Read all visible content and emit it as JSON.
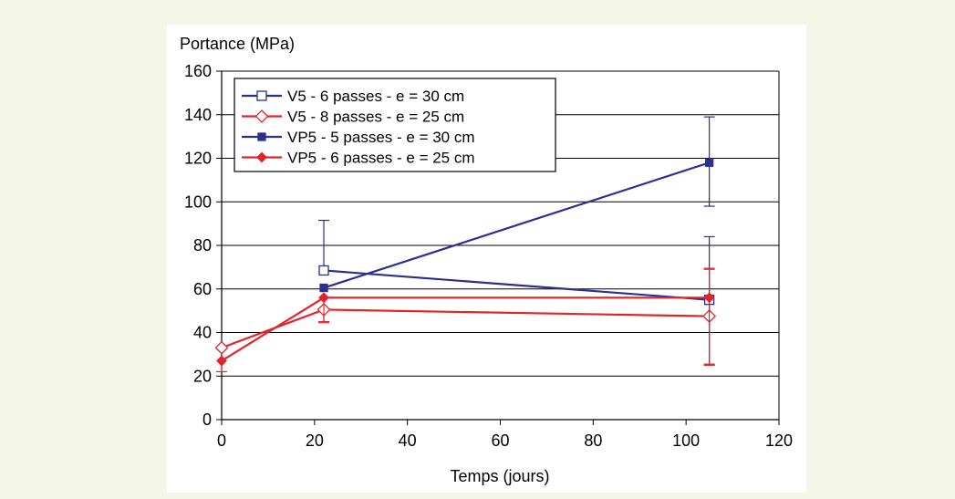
{
  "chart_data": {
    "type": "line",
    "title": "",
    "ylabel": "Portance (MPa)",
    "xlabel": "Temps (jours)",
    "xlim": [
      0,
      120
    ],
    "ylim": [
      0,
      160
    ],
    "x_ticks": [
      0,
      20,
      40,
      60,
      80,
      100,
      120
    ],
    "y_ticks": [
      0,
      20,
      40,
      60,
      80,
      100,
      120,
      140,
      160
    ],
    "grid": "horizontal",
    "legend_position": "top-left",
    "series": [
      {
        "name": "V5 - 6 passes - e = 30 cm",
        "color": "#2b2f8f",
        "marker": "square-open",
        "points": [
          {
            "x": 22,
            "y": 68.5,
            "err_low": 0,
            "err_high": 23
          },
          {
            "x": 105,
            "y": 55,
            "err_low": 30,
            "err_high": 29
          }
        ]
      },
      {
        "name": "V5 - 8 passes - e = 25 cm",
        "color": "#e3242b",
        "marker": "diamond-open",
        "points": [
          {
            "x": 0,
            "y": 33,
            "err_low": 0,
            "err_high": 0
          },
          {
            "x": 22,
            "y": 50.5,
            "err_low": 6,
            "err_high": 0
          },
          {
            "x": 105,
            "y": 47.5,
            "err_low": 22,
            "err_high": 22
          }
        ]
      },
      {
        "name": "VP5 - 5 passes - e = 30 cm",
        "color": "#2b2f8f",
        "marker": "square-filled",
        "points": [
          {
            "x": 22,
            "y": 60.5,
            "err_low": 0,
            "err_high": 0
          },
          {
            "x": 105,
            "y": 118,
            "err_low": 20,
            "err_high": 21
          }
        ]
      },
      {
        "name": "VP5 - 6 passes - e = 25 cm",
        "color": "#e3242b",
        "marker": "diamond-filled",
        "points": [
          {
            "x": 0,
            "y": 27,
            "err_low": 5,
            "err_high": 0
          },
          {
            "x": 22,
            "y": 56,
            "err_low": 11,
            "err_high": 0
          },
          {
            "x": 105,
            "y": 56,
            "err_low": 31,
            "err_high": 13
          }
        ]
      }
    ]
  }
}
